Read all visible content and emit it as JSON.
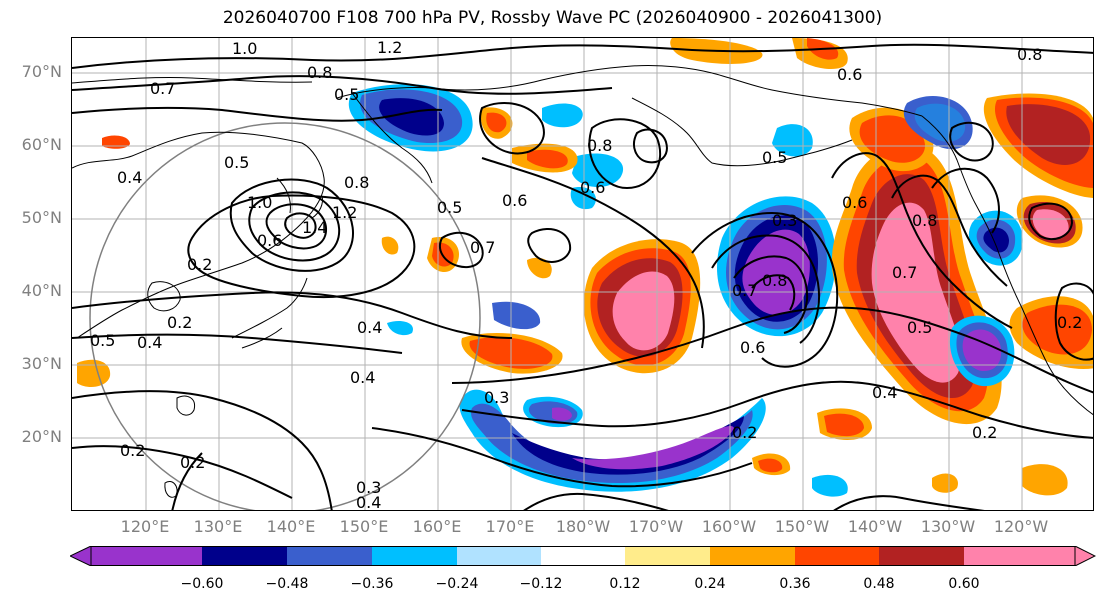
{
  "title": "2026040700 F108 700 hPa PV, Rossby Wave PC (2026040900 - 2026041300)",
  "lat_labels": [
    "70°N",
    "60°N",
    "50°N",
    "40°N",
    "30°N",
    "20°N"
  ],
  "lon_labels": [
    "120°E",
    "130°E",
    "140°E",
    "150°E",
    "160°E",
    "170°E",
    "180°W",
    "170°W",
    "160°W",
    "150°W",
    "140°W",
    "130°W",
    "120°W"
  ],
  "colorbar": {
    "ticks": [
      "−0.60",
      "−0.48",
      "−0.36",
      "−0.24",
      "−0.12",
      "0.12",
      "0.24",
      "0.36",
      "0.48",
      "0.60"
    ],
    "colors": [
      "#9933cc",
      "#00008b",
      "#3a5fcd",
      "#00bfff",
      "#b0e2ff",
      "#ffffff",
      "#ffec8b",
      "#ffa500",
      "#ff4500",
      "#b22222",
      "#ff82ab"
    ]
  },
  "contour_labels": [
    "1.0",
    "1.2",
    "0.8",
    "0.7",
    "0.5",
    "0.4",
    "0.5",
    "0.8",
    "0.2",
    "1.0",
    "0.6",
    "1.4",
    "1.2",
    "0.2",
    "0.5",
    "0.4",
    "0.2",
    "0.8",
    "0.6",
    "0.6",
    "0.5",
    "0.7",
    "0.4",
    "0.4",
    "0.3",
    "0.3",
    "0.4",
    "0.2",
    "0.2",
    "0.8",
    "0.6",
    "0.5",
    "0.7",
    "0.6",
    "0.3",
    "0.6",
    "0.8",
    "0.7",
    "0.5",
    "0.4",
    "0.2",
    "0.8",
    "0.2"
  ]
}
